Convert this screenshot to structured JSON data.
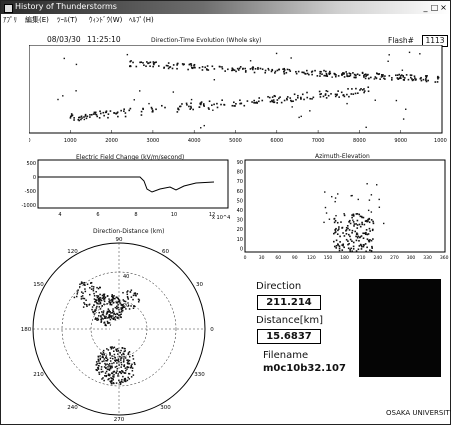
{
  "window": {
    "title": "History of Thunderstorms",
    "minimize": "_",
    "maximize": "□",
    "close": "×"
  },
  "menu": [
    "ｱﾌﾟﾘ",
    "編集(E)",
    "ﾂｰﾙ(T)",
    "ｳｨﾝﾄﾞｳ(W)",
    "ﾍﾙﾌﾟ(H)"
  ],
  "header": {
    "date": "08/03/30",
    "time": "11:25:10",
    "flash_label": "Flash#",
    "flash_value": "1113"
  },
  "plots": {
    "history": {
      "title": "Direction-Time Evolution (Whole sky)",
      "y_ticks": [
        "350",
        "300",
        "250",
        "200",
        "150",
        "100",
        "50"
      ],
      "x_ticks": [
        "0",
        "1000",
        "2000",
        "3000",
        "4000",
        "5000",
        "6000",
        "7000",
        "8000",
        "9000",
        "10000"
      ]
    },
    "efield": {
      "title": "Electric Field Change (kV/m/second)",
      "y_ticks": [
        "500",
        "0",
        "-500",
        "-1000"
      ],
      "x_ticks": [
        "4",
        "6",
        "8",
        "10",
        "12"
      ],
      "x_exp": "x 10^4"
    },
    "azel": {
      "title": "Azimuth-Elevation",
      "y_ticks": [
        "90",
        "80",
        "70",
        "60",
        "50",
        "40",
        "30",
        "20",
        "10",
        "0"
      ],
      "x_ticks": [
        "0",
        "30",
        "60",
        "90",
        "120",
        "150",
        "180",
        "210",
        "240",
        "270",
        "300",
        "330",
        "360"
      ]
    },
    "polar": {
      "title": "Direction-Distance (km)",
      "angle_labels": [
        "90",
        "60",
        "30",
        "0",
        "330",
        "300",
        "270",
        "240",
        "210",
        "180",
        "150",
        "120"
      ],
      "ring_labels": [
        "40",
        "20"
      ]
    }
  },
  "direction": {
    "label": "Direction",
    "value": "211.214"
  },
  "distance": {
    "label": "Distance[km]",
    "value": "15.6837"
  },
  "file": {
    "label": "Filename",
    "value": "m0c10b32.107"
  },
  "footer": {
    "university": "OSAKA UNIVERSITY"
  }
}
